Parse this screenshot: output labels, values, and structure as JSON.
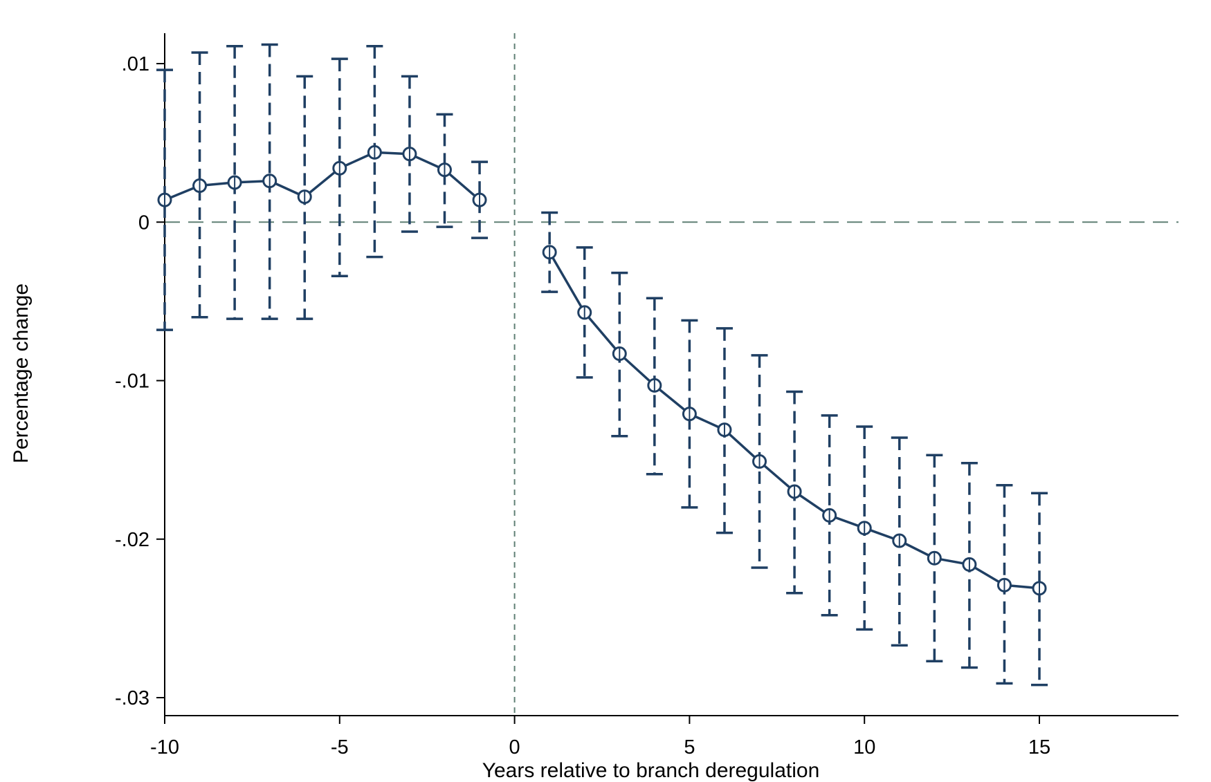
{
  "chart_data": {
    "type": "line",
    "title": "",
    "xlabel": "Years relative to branch deregulation",
    "ylabel": "Percentage change",
    "xlim": [
      -10.5,
      15.5
    ],
    "ylim": [
      -0.031,
      0.0125
    ],
    "x_ticks": [
      -10,
      -5,
      0,
      5,
      10,
      15
    ],
    "x_tick_labels": [
      "-10",
      "-5",
      "0",
      "5",
      "10",
      "15"
    ],
    "y_ticks": [
      0.01,
      0,
      -0.01,
      -0.02,
      -0.03
    ],
    "y_tick_labels": [
      ".01",
      "0",
      "-.01",
      "-.02",
      "-.03"
    ],
    "reference_lines": {
      "x": 0,
      "y": 0,
      "style": "dashed"
    },
    "grid": false,
    "colors": {
      "series": "#1f3f63",
      "reference": "#5f7f74"
    },
    "series": [
      {
        "points": [
          {
            "x": -10,
            "y": 0.0014,
            "ci_low": -0.0068,
            "ci_high": 0.0096
          },
          {
            "x": -9,
            "y": 0.0023,
            "ci_low": -0.006,
            "ci_high": 0.0107
          },
          {
            "x": -8,
            "y": 0.0025,
            "ci_low": -0.0061,
            "ci_high": 0.0111
          },
          {
            "x": -7,
            "y": 0.0026,
            "ci_low": -0.0061,
            "ci_high": 0.0112
          },
          {
            "x": -6,
            "y": 0.0016,
            "ci_low": -0.0061,
            "ci_high": 0.0092
          },
          {
            "x": -5,
            "y": 0.0034,
            "ci_low": -0.0034,
            "ci_high": 0.0103
          },
          {
            "x": -4,
            "y": 0.0044,
            "ci_low": -0.0022,
            "ci_high": 0.0111
          },
          {
            "x": -3,
            "y": 0.0043,
            "ci_low": -0.0006,
            "ci_high": 0.0092
          },
          {
            "x": -2,
            "y": 0.0033,
            "ci_low": -0.0003,
            "ci_high": 0.0068
          },
          {
            "x": -1,
            "y": 0.0014,
            "ci_low": -0.001,
            "ci_high": 0.0038
          },
          {
            "x": 1,
            "y": -0.0019,
            "ci_low": -0.0044,
            "ci_high": 0.0006
          },
          {
            "x": 2,
            "y": -0.0057,
            "ci_low": -0.0098,
            "ci_high": -0.0016
          },
          {
            "x": 3,
            "y": -0.0083,
            "ci_low": -0.0135,
            "ci_high": -0.0032
          },
          {
            "x": 4,
            "y": -0.0103,
            "ci_low": -0.0159,
            "ci_high": -0.0048
          },
          {
            "x": 5,
            "y": -0.0121,
            "ci_low": -0.018,
            "ci_high": -0.0062
          },
          {
            "x": 6,
            "y": -0.0131,
            "ci_low": -0.0196,
            "ci_high": -0.0067
          },
          {
            "x": 7,
            "y": -0.0151,
            "ci_low": -0.0218,
            "ci_high": -0.0084
          },
          {
            "x": 8,
            "y": -0.017,
            "ci_low": -0.0234,
            "ci_high": -0.0107
          },
          {
            "x": 9,
            "y": -0.0185,
            "ci_low": -0.0248,
            "ci_high": -0.0122
          },
          {
            "x": 10,
            "y": -0.0193,
            "ci_low": -0.0257,
            "ci_high": -0.0129
          },
          {
            "x": 11,
            "y": -0.0201,
            "ci_low": -0.0267,
            "ci_high": -0.0136
          },
          {
            "x": 12,
            "y": -0.0212,
            "ci_low": -0.0277,
            "ci_high": -0.0147
          },
          {
            "x": 13,
            "y": -0.0216,
            "ci_low": -0.0281,
            "ci_high": -0.0152
          },
          {
            "x": 14,
            "y": -0.0229,
            "ci_low": -0.0291,
            "ci_high": -0.0166
          },
          {
            "x": 15,
            "y": -0.0231,
            "ci_low": -0.0292,
            "ci_high": -0.0171
          }
        ]
      }
    ]
  }
}
